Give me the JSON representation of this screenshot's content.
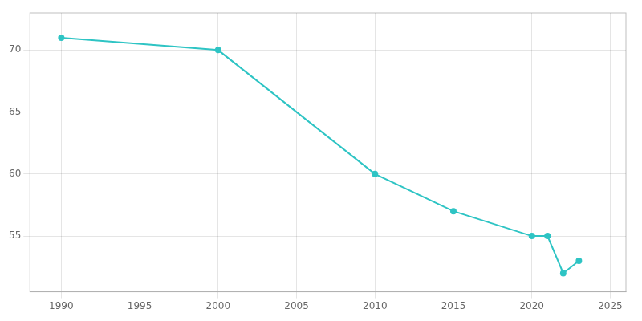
{
  "chart_data": {
    "type": "line",
    "x": [
      1990,
      2000,
      2010,
      2015,
      2020,
      2021,
      2022,
      2023
    ],
    "values": [
      71,
      70,
      60,
      57,
      55,
      55,
      52,
      53
    ],
    "color": "#2EC4C4",
    "marker": "circle",
    "xlim": [
      1988,
      2026
    ],
    "ylim": [
      50.5,
      73
    ],
    "xticks": [
      1990,
      1995,
      2000,
      2005,
      2010,
      2015,
      2020,
      2025
    ],
    "yticks": [
      55,
      60,
      65,
      70
    ],
    "grid": true
  }
}
